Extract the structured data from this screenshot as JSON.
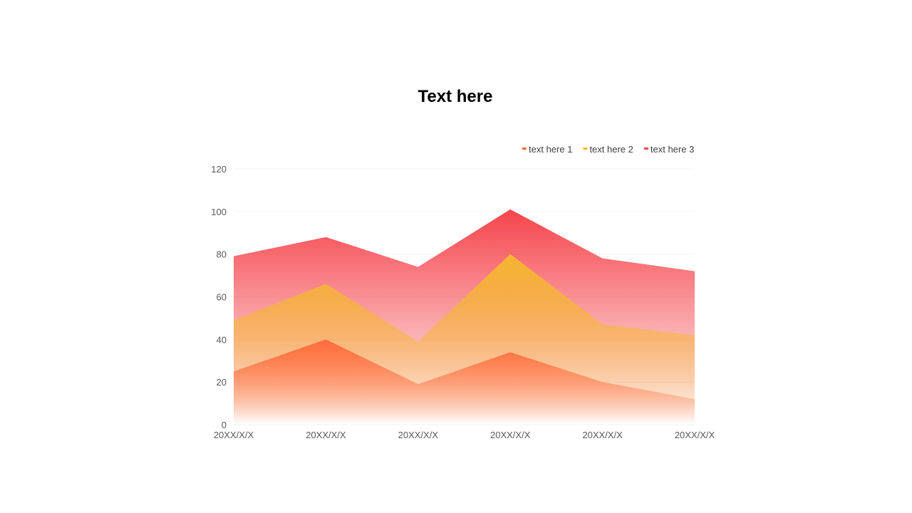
{
  "chart_data": {
    "type": "area",
    "title": "Text here",
    "xlabel": "",
    "ylabel": "",
    "categories": [
      "20XX/X/X",
      "20XX/X/X",
      "20XX/X/X",
      "20XX/X/X",
      "20XX/X/X",
      "20XX/X/X"
    ],
    "ylim": [
      0,
      120
    ],
    "yticks": [
      0,
      20,
      40,
      60,
      80,
      100,
      120
    ],
    "grid": true,
    "legend_position": "top-right",
    "series": [
      {
        "name": "text here 1",
        "values": [
          25,
          40,
          19,
          34,
          20,
          12
        ],
        "color": "#FF6B3D"
      },
      {
        "name": "text here 2",
        "values": [
          49,
          66,
          39,
          80,
          47,
          42
        ],
        "color": "#F5B731"
      },
      {
        "name": "text here 3",
        "values": [
          79,
          88,
          74,
          101,
          78,
          72
        ],
        "color": "#F5444B"
      }
    ]
  }
}
